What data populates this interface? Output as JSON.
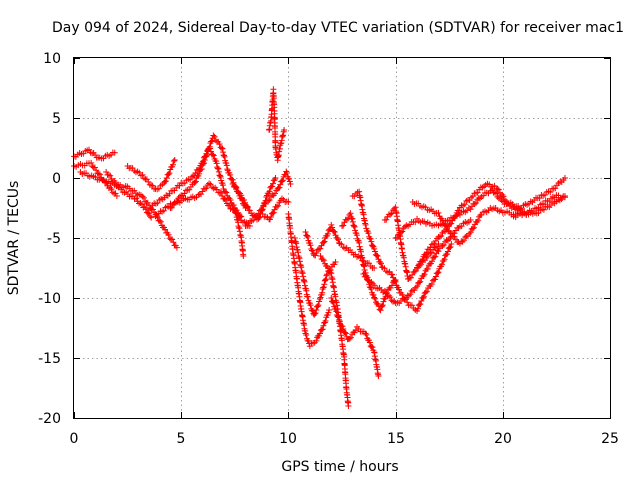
{
  "chart_data": {
    "type": "scatter",
    "title": "Day 094 of 2024, Sidereal Day-to-day VTEC variation (SDTVAR) for receiver mac1",
    "xlabel": "GPS time / hours",
    "ylabel": "SDTVAR / TECUs",
    "xlim": [
      0,
      25
    ],
    "ylim": [
      -20,
      10
    ],
    "x_ticks": [
      "0",
      "5",
      "10",
      "15",
      "20",
      "25"
    ],
    "y_ticks": [
      "10",
      "5",
      "0",
      "-5",
      "-10",
      "-15",
      "-20"
    ],
    "grid": true,
    "marker": "plus",
    "colors": {
      "series": "#ff0000",
      "grid": "#a0a0a0",
      "axis": "#000000"
    },
    "series": [
      {
        "name": "SDTVAR",
        "trace": [
          [
            0,
            1.0
          ],
          [
            0.8,
            1.2
          ],
          [
            1.5,
            -0.5
          ],
          [
            2.0,
            -1.5
          ]
        ]
      },
      {
        "name": "SDTVAR",
        "trace": [
          [
            0,
            1.8
          ],
          [
            0.7,
            2.3
          ],
          [
            1.2,
            1.6
          ],
          [
            1.9,
            2.1
          ]
        ]
      },
      {
        "name": "SDTVAR",
        "trace": [
          [
            0.3,
            0.5
          ],
          [
            1.0,
            0.0
          ],
          [
            1.8,
            -0.5
          ],
          [
            2.5,
            -0.8
          ],
          [
            3.2,
            -1.6
          ],
          [
            3.8,
            -3.0
          ],
          [
            4.3,
            -4.5
          ],
          [
            4.8,
            -5.8
          ]
        ]
      },
      {
        "name": "SDTVAR",
        "trace": [
          [
            1.5,
            0.5
          ],
          [
            2.2,
            -1.0
          ],
          [
            2.9,
            -1.8
          ],
          [
            3.3,
            -2.5
          ],
          [
            3.6,
            -3.3
          ]
        ]
      },
      {
        "name": "SDTVAR",
        "trace": [
          [
            2.5,
            1.0
          ],
          [
            3.2,
            0.2
          ],
          [
            3.8,
            -1.0
          ],
          [
            4.2,
            -0.5
          ],
          [
            4.7,
            1.5
          ]
        ]
      },
      {
        "name": "SDTVAR",
        "trace": [
          [
            3.5,
            -2.5
          ],
          [
            4.3,
            -1.5
          ],
          [
            5.0,
            -0.5
          ],
          [
            5.5,
            0.0
          ],
          [
            5.9,
            1.0
          ],
          [
            6.3,
            2.5
          ],
          [
            6.6,
            1.5
          ],
          [
            7.0,
            -1.0
          ],
          [
            7.5,
            -2.5
          ],
          [
            7.8,
            -3.5
          ],
          [
            8.2,
            -4.0
          ]
        ]
      },
      {
        "name": "SDTVAR",
        "trace": [
          [
            3.8,
            -3.2
          ],
          [
            4.5,
            -2.2
          ],
          [
            5.2,
            -1.8
          ],
          [
            5.8,
            -1.5
          ],
          [
            6.3,
            -0.5
          ],
          [
            6.8,
            -1.2
          ],
          [
            7.3,
            -2.5
          ],
          [
            7.8,
            -3.2
          ]
        ]
      },
      {
        "name": "SDTVAR",
        "trace": [
          [
            4.5,
            -2.5
          ],
          [
            5.0,
            -1.5
          ],
          [
            5.6,
            -0.5
          ],
          [
            6.0,
            1.0
          ],
          [
            6.5,
            3.5
          ],
          [
            6.9,
            2.5
          ],
          [
            7.2,
            0.5
          ],
          [
            7.6,
            -1.0
          ],
          [
            8.0,
            -2.5
          ]
        ]
      },
      {
        "name": "SDTVAR",
        "trace": [
          [
            7.5,
            -2.5
          ],
          [
            7.8,
            -5.0
          ],
          [
            7.9,
            -6.5
          ]
        ]
      },
      {
        "name": "SDTVAR",
        "trace": [
          [
            7.4,
            -0.5
          ],
          [
            7.8,
            -1.5
          ],
          [
            8.2,
            -2.8
          ],
          [
            8.6,
            -3.5
          ],
          [
            9.0,
            -1.5
          ],
          [
            9.4,
            0.0
          ]
        ]
      },
      {
        "name": "SDTVAR",
        "trace": [
          [
            8.0,
            -4.0
          ],
          [
            8.5,
            -3.2
          ],
          [
            9.0,
            -2.0
          ],
          [
            9.5,
            -1.0
          ],
          [
            9.9,
            0.5
          ],
          [
            10.1,
            -0.5
          ]
        ]
      },
      {
        "name": "SDTVAR",
        "trace": [
          [
            9.1,
            4.0
          ],
          [
            9.2,
            5.0
          ],
          [
            9.3,
            7.3
          ],
          [
            9.35,
            5.5
          ],
          [
            9.4,
            2.5
          ],
          [
            9.5,
            1.5
          ],
          [
            9.6,
            2.5
          ],
          [
            9.8,
            4.0
          ]
        ]
      },
      {
        "name": "SDTVAR",
        "trace": [
          [
            8.8,
            -3.0
          ],
          [
            9.1,
            -3.5
          ],
          [
            9.4,
            -2.5
          ],
          [
            9.7,
            -1.8
          ],
          [
            10.0,
            -2.0
          ]
        ]
      },
      {
        "name": "SDTVAR",
        "trace": [
          [
            10.0,
            -3.0
          ],
          [
            10.2,
            -6.0
          ],
          [
            10.4,
            -8.5
          ],
          [
            10.6,
            -11.0
          ],
          [
            10.8,
            -13.0
          ],
          [
            11.0,
            -14.0
          ],
          [
            11.3,
            -13.5
          ],
          [
            11.6,
            -12.5
          ],
          [
            11.9,
            -11.0
          ]
        ]
      },
      {
        "name": "SDTVAR",
        "trace": [
          [
            10.3,
            -5.0
          ],
          [
            10.6,
            -7.5
          ],
          [
            10.9,
            -10.0
          ],
          [
            11.2,
            -11.5
          ],
          [
            11.5,
            -10.0
          ],
          [
            11.8,
            -8.0
          ],
          [
            12.2,
            -7.0
          ]
        ]
      },
      {
        "name": "SDTVAR",
        "trace": [
          [
            10.8,
            -4.5
          ],
          [
            11.2,
            -6.5
          ],
          [
            11.6,
            -5.5
          ],
          [
            12.0,
            -4.0
          ],
          [
            12.4,
            -5.5
          ],
          [
            12.8,
            -6.0
          ],
          [
            13.2,
            -6.5
          ],
          [
            13.6,
            -7.0
          ],
          [
            14.0,
            -7.5
          ]
        ]
      },
      {
        "name": "SDTVAR",
        "trace": [
          [
            11.5,
            -6.5
          ],
          [
            12.0,
            -8.0
          ],
          [
            12.3,
            -11.0
          ],
          [
            12.6,
            -15.0
          ],
          [
            12.7,
            -17.5
          ],
          [
            12.8,
            -19.0
          ]
        ]
      },
      {
        "name": "SDTVAR",
        "trace": [
          [
            12.0,
            -10.0
          ],
          [
            12.4,
            -12.0
          ],
          [
            12.8,
            -13.5
          ],
          [
            13.2,
            -12.5
          ],
          [
            13.6,
            -13.0
          ],
          [
            14.0,
            -14.5
          ],
          [
            14.2,
            -16.5
          ]
        ]
      },
      {
        "name": "SDTVAR",
        "trace": [
          [
            12.5,
            -4.0
          ],
          [
            12.9,
            -3.0
          ],
          [
            13.3,
            -5.5
          ],
          [
            13.6,
            -8.0
          ],
          [
            14.0,
            -10.0
          ],
          [
            14.3,
            -11.0
          ],
          [
            14.6,
            -9.5
          ],
          [
            15.0,
            -8.5
          ]
        ]
      },
      {
        "name": "SDTVAR",
        "trace": [
          [
            13.0,
            -1.5
          ],
          [
            13.3,
            -1.2
          ],
          [
            13.6,
            -4.0
          ],
          [
            14.0,
            -6.0
          ],
          [
            14.4,
            -7.5
          ],
          [
            14.8,
            -8.0
          ],
          [
            15.2,
            -9.5
          ],
          [
            15.6,
            -10.5
          ],
          [
            16.0,
            -11.0
          ],
          [
            16.4,
            -9.5
          ],
          [
            16.8,
            -8.5
          ],
          [
            17.2,
            -7.0
          ],
          [
            17.6,
            -5.5
          ]
        ]
      },
      {
        "name": "SDTVAR",
        "trace": [
          [
            13.5,
            -8.0
          ],
          [
            14.0,
            -9.0
          ],
          [
            14.5,
            -9.5
          ],
          [
            15.0,
            -10.5
          ],
          [
            15.5,
            -10.0
          ],
          [
            16.0,
            -9.0
          ],
          [
            16.5,
            -7.5
          ],
          [
            17.0,
            -6.0
          ],
          [
            17.5,
            -5.0
          ],
          [
            18.0,
            -4.0
          ],
          [
            18.5,
            -3.5
          ]
        ]
      },
      {
        "name": "SDTVAR",
        "trace": [
          [
            14.5,
            -3.5
          ],
          [
            15.0,
            -2.5
          ],
          [
            15.3,
            -6.0
          ],
          [
            15.6,
            -8.5
          ],
          [
            16.0,
            -7.5
          ],
          [
            16.5,
            -6.5
          ],
          [
            17.0,
            -5.5
          ]
        ]
      },
      {
        "name": "SDTVAR",
        "trace": [
          [
            15.0,
            -5.0
          ],
          [
            15.5,
            -4.0
          ],
          [
            16.0,
            -3.5
          ],
          [
            16.5,
            -3.8
          ],
          [
            17.0,
            -4.0
          ],
          [
            17.5,
            -3.5
          ],
          [
            18.0,
            -3.0
          ],
          [
            18.5,
            -2.5
          ],
          [
            19.0,
            -1.5
          ],
          [
            19.5,
            -1.0
          ],
          [
            20.0,
            -2.0
          ],
          [
            20.5,
            -2.5
          ],
          [
            21.0,
            -2.8
          ]
        ]
      },
      {
        "name": "SDTVAR",
        "trace": [
          [
            15.8,
            -2.0
          ],
          [
            16.4,
            -2.5
          ],
          [
            17.0,
            -3.0
          ],
          [
            17.5,
            -4.5
          ],
          [
            18.0,
            -5.5
          ],
          [
            18.5,
            -4.5
          ],
          [
            19.0,
            -3.0
          ],
          [
            19.5,
            -2.5
          ],
          [
            20.0,
            -2.8
          ],
          [
            20.5,
            -3.0
          ],
          [
            21.0,
            -3.0
          ],
          [
            21.5,
            -2.6
          ],
          [
            22.0,
            -2.0
          ],
          [
            22.5,
            -1.5
          ],
          [
            22.9,
            -1.6
          ]
        ]
      },
      {
        "name": "SDTVAR",
        "trace": [
          [
            16.0,
            -7.5
          ],
          [
            16.5,
            -6.0
          ],
          [
            17.0,
            -5.0
          ],
          [
            17.5,
            -4.0
          ],
          [
            18.0,
            -2.5
          ],
          [
            18.6,
            -1.5
          ],
          [
            19.2,
            -0.5
          ],
          [
            19.7,
            -0.8
          ],
          [
            20.2,
            -2.0
          ],
          [
            20.8,
            -2.5
          ],
          [
            21.3,
            -2.0
          ],
          [
            21.8,
            -1.5
          ],
          [
            22.3,
            -1.0
          ],
          [
            22.6,
            -0.5
          ],
          [
            22.9,
            0.0
          ]
        ]
      },
      {
        "name": "SDTVAR",
        "trace": [
          [
            20.5,
            -3.2
          ],
          [
            21.0,
            -3.0
          ],
          [
            21.5,
            -3.0
          ],
          [
            22.0,
            -2.5
          ],
          [
            22.5,
            -2.0
          ],
          [
            22.9,
            -1.5
          ]
        ]
      }
    ]
  }
}
